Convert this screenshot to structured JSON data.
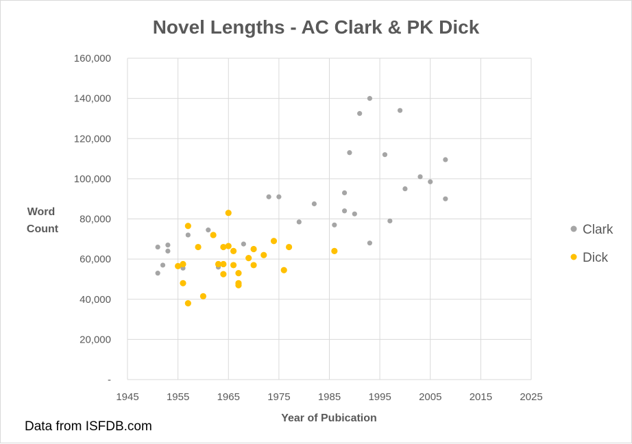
{
  "chart_data": {
    "type": "scatter",
    "title": "Novel Lengths - AC Clark & PK Dick",
    "xlabel": "Year of Pubication",
    "ylabel_lines": [
      "Word",
      "Count"
    ],
    "xlim": [
      1945,
      2025
    ],
    "ylim": [
      0,
      160000
    ],
    "x_ticks": [
      1945,
      1955,
      1965,
      1975,
      1985,
      1995,
      2005,
      2015,
      2025
    ],
    "x_tick_labels": [
      "1945",
      "1955",
      "1965",
      "1975",
      "1985",
      "1995",
      "2005",
      "2015",
      "2025"
    ],
    "y_ticks": [
      0,
      20000,
      40000,
      60000,
      80000,
      100000,
      120000,
      140000,
      160000
    ],
    "y_tick_labels": [
      "-",
      "20,000",
      "40,000",
      "60,000",
      "80,000",
      "100,000",
      "120,000",
      "140,000",
      "160,000"
    ],
    "grid": true,
    "legend_position": "right",
    "series": [
      {
        "name": "Clark",
        "color": "#a5a5a5",
        "points": [
          [
            1951,
            66000
          ],
          [
            1951,
            53000
          ],
          [
            1952,
            57000
          ],
          [
            1953,
            67000
          ],
          [
            1953,
            64000
          ],
          [
            1956,
            55500
          ],
          [
            1957,
            72000
          ],
          [
            1961,
            74500
          ],
          [
            1963,
            56000
          ],
          [
            1968,
            67500
          ],
          [
            1973,
            91000
          ],
          [
            1975,
            91000
          ],
          [
            1979,
            78500
          ],
          [
            1982,
            87500
          ],
          [
            1986,
            77000
          ],
          [
            1988,
            93000
          ],
          [
            1988,
            84000
          ],
          [
            1989,
            113000
          ],
          [
            1990,
            82500
          ],
          [
            1991,
            132500
          ],
          [
            1993,
            140000
          ],
          [
            1993,
            68000
          ],
          [
            1996,
            112000
          ],
          [
            1997,
            79000
          ],
          [
            1999,
            134000
          ],
          [
            2000,
            95000
          ],
          [
            2003,
            101000
          ],
          [
            2005,
            98500
          ],
          [
            2008,
            109500
          ],
          [
            2008,
            90000
          ]
        ]
      },
      {
        "name": "Dick",
        "color": "#ffc000",
        "points": [
          [
            1955,
            56500
          ],
          [
            1956,
            57500
          ],
          [
            1956,
            48000
          ],
          [
            1957,
            76500
          ],
          [
            1957,
            38000
          ],
          [
            1959,
            66000
          ],
          [
            1960,
            41500
          ],
          [
            1962,
            72000
          ],
          [
            1963,
            57500
          ],
          [
            1964,
            57500
          ],
          [
            1964,
            52500
          ],
          [
            1964,
            66000
          ],
          [
            1965,
            83000
          ],
          [
            1965,
            66500
          ],
          [
            1966,
            64000
          ],
          [
            1966,
            57000
          ],
          [
            1967,
            53000
          ],
          [
            1967,
            48000
          ],
          [
            1967,
            47000
          ],
          [
            1969,
            60500
          ],
          [
            1970,
            65000
          ],
          [
            1970,
            57000
          ],
          [
            1972,
            62000
          ],
          [
            1974,
            69000
          ],
          [
            1976,
            54500
          ],
          [
            1977,
            66000
          ],
          [
            1986,
            64000
          ]
        ]
      }
    ]
  },
  "footer": {
    "source": "Data from ISFDB.com"
  }
}
